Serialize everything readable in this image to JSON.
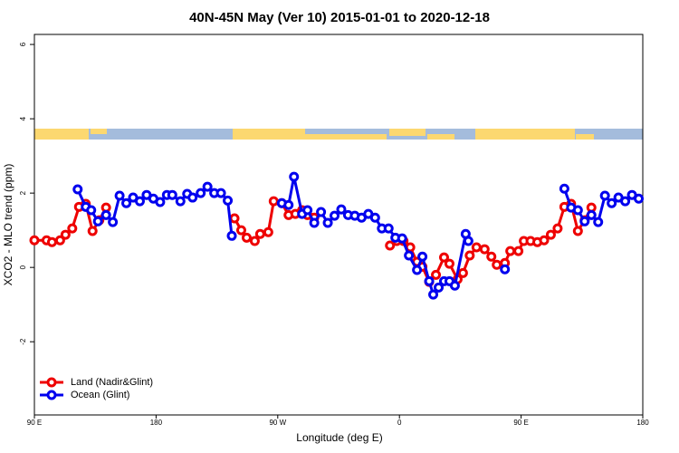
{
  "chart_data": {
    "type": "line",
    "title": "40N-45N May (Ver 10)   2015-01-01 to 2020-12-18",
    "xlabel": "Longitude (deg E)",
    "ylabel": "XCO2 - MLO trend (ppm)",
    "xlim": [
      90,
      540
    ],
    "xticks": [
      {
        "value": 90,
        "label": "90 E"
      },
      180,
      {
        "value": 270,
        "label": "90 W"
      },
      {
        "value": 360,
        "label": "0"
      },
      {
        "value": 450,
        "label": "90 E"
      },
      {
        "value": 540,
        "label": "180"
      }
    ],
    "ylim": [
      -3.97,
      6.27
    ],
    "yticks": [
      6,
      4,
      2,
      0,
      -2
    ],
    "legend": "bottom left",
    "series": [
      {
        "name": "Land (Nadir&Glint)",
        "color": "#ee0000",
        "x": [
          90,
          99,
          103,
          109,
          113,
          118,
          123,
          128,
          133,
          138,
          143,
          null,
          238,
          243,
          247,
          253,
          257,
          263,
          267,
          273,
          278,
          283,
          288,
          292,
          297,
          null,
          353,
          358,
          363,
          368,
          373,
          377,
          382,
          387,
          393,
          397,
          403,
          407,
          412,
          417,
          423,
          428,
          432,
          438,
          442,
          448,
          452,
          457,
          462,
          467,
          472,
          477,
          482,
          487,
          492,
          497,
          502
        ],
        "values": [
          0.73,
          0.73,
          0.68,
          0.73,
          0.88,
          1.05,
          1.63,
          1.71,
          0.98,
          1.27,
          1.61,
          null,
          1.32,
          1.0,
          0.8,
          0.71,
          0.9,
          0.95,
          1.78,
          1.73,
          1.41,
          1.44,
          1.54,
          1.41,
          1.34,
          null,
          0.59,
          0.71,
          0.71,
          0.54,
          0.15,
          0.02,
          -0.39,
          -0.2,
          0.27,
          0.1,
          -0.32,
          -0.15,
          0.32,
          0.54,
          0.49,
          0.29,
          0.07,
          0.12,
          0.44,
          0.44,
          0.71,
          0.71,
          0.68,
          0.73,
          0.88,
          1.05,
          1.63,
          1.71,
          0.98,
          1.27,
          1.61
        ]
      },
      {
        "name": "Ocean (Glint)",
        "color": "#0000ee",
        "x": [
          122,
          128,
          132,
          137,
          143,
          148,
          153,
          158,
          163,
          168,
          173,
          178,
          183,
          188,
          192,
          198,
          203,
          207,
          213,
          218,
          223,
          228,
          233,
          236,
          null,
          273,
          278,
          282,
          288,
          292,
          297,
          302,
          307,
          312,
          317,
          322,
          327,
          332,
          337,
          342,
          347,
          352,
          357,
          362,
          367,
          373,
          377,
          382,
          385,
          389,
          393,
          397,
          401,
          409,
          411,
          null,
          438,
          null,
          482,
          487,
          492,
          497,
          502,
          507,
          512,
          517,
          522,
          527,
          532,
          537
        ],
        "values": [
          2.1,
          1.63,
          1.54,
          1.24,
          1.41,
          1.22,
          1.93,
          1.73,
          1.88,
          1.78,
          1.95,
          1.85,
          1.76,
          1.95,
          1.95,
          1.78,
          1.98,
          1.88,
          2.0,
          2.17,
          2.0,
          2.0,
          1.8,
          0.85,
          null,
          1.73,
          1.68,
          2.44,
          1.44,
          1.54,
          1.2,
          1.49,
          1.2,
          1.39,
          1.56,
          1.41,
          1.39,
          1.34,
          1.44,
          1.34,
          1.05,
          1.05,
          0.8,
          0.78,
          0.32,
          -0.07,
          0.29,
          -0.37,
          -0.73,
          -0.54,
          -0.37,
          -0.37,
          -0.49,
          0.9,
          0.71,
          null,
          -0.05,
          null,
          2.12,
          1.61,
          1.54,
          1.24,
          1.41,
          1.22,
          1.93,
          1.73,
          1.88,
          1.78,
          1.95,
          1.85
        ]
      }
    ]
  }
}
